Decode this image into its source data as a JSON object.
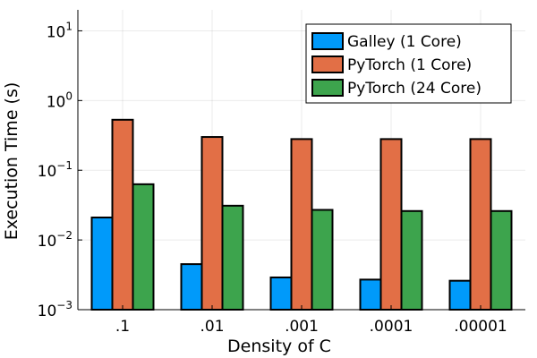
{
  "chart_data": {
    "type": "bar",
    "title": "",
    "xlabel": "Density of C",
    "ylabel": "Execution Time (s)",
    "yscale": "log10",
    "ylim": [
      0.001,
      20
    ],
    "grid": true,
    "legend_position": "top-right",
    "categories": [
      ".1",
      ".01",
      ".001",
      ".0001",
      ".00001"
    ],
    "y_ticks": [
      {
        "value": 0.001,
        "base": "10",
        "exp": "−3"
      },
      {
        "value": 0.01,
        "base": "10",
        "exp": "−2"
      },
      {
        "value": 0.1,
        "base": "10",
        "exp": "−1"
      },
      {
        "value": 1,
        "base": "10",
        "exp": "0"
      },
      {
        "value": 10,
        "base": "10",
        "exp": "1"
      }
    ],
    "series": [
      {
        "name": "Galley (1 Core)",
        "color": "#009AFA",
        "values": [
          0.021,
          0.0045,
          0.0029,
          0.0027,
          0.0026
        ]
      },
      {
        "name": "PyTorch (1 Core)",
        "color": "#E26F46",
        "values": [
          0.53,
          0.3,
          0.28,
          0.28,
          0.28
        ]
      },
      {
        "name": "PyTorch (24 Core)",
        "color": "#3DA44D",
        "values": [
          0.063,
          0.031,
          0.027,
          0.026,
          0.026
        ]
      }
    ]
  }
}
